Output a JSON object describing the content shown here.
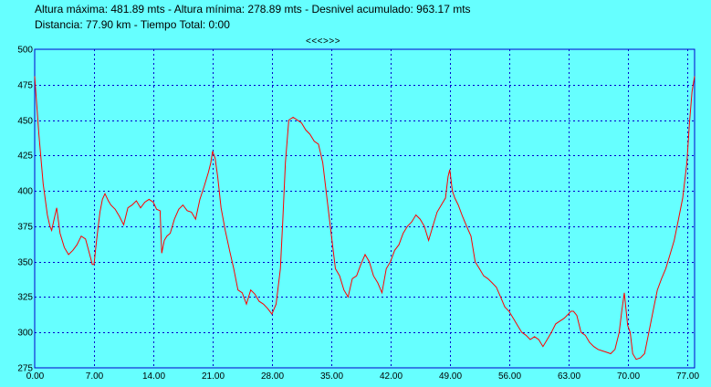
{
  "header": {
    "line1": "Altura máxima: 481.89 mts - Altura mínima: 278.89 mts - Desnivel acumulado: 963.17 mts",
    "line2": "Distancia: 77.90 km - Tiempo Total: 0:00",
    "nav": "<<<>>>"
  },
  "colors": {
    "background": "#66ffff",
    "line": "#ff0000",
    "grid": "#0000cc"
  },
  "chart_data": {
    "type": "line",
    "xlim": [
      0,
      77.9
    ],
    "ylim": [
      275,
      500
    ],
    "x_ticks": [
      "0.00",
      "7.00",
      "14.00",
      "21.00",
      "28.00",
      "35.00",
      "42.00",
      "49.00",
      "56.00",
      "63.00",
      "70.00",
      "77.00"
    ],
    "y_ticks": [
      "275",
      "300",
      "325",
      "350",
      "375",
      "400",
      "425",
      "450",
      "475",
      "500"
    ],
    "grid": true,
    "series": [
      {
        "x": [
          0,
          0.5,
          1.0,
          1.5,
          1.8,
          2.0,
          2.3,
          2.6,
          3.0,
          3.5,
          4.0,
          4.5,
          5.0,
          5.5,
          6.0,
          6.5,
          6.8,
          7.0,
          7.3,
          7.7,
          8.0,
          8.3,
          8.7,
          9.0,
          9.5,
          10.0,
          10.5,
          11.0,
          11.5,
          12.0,
          12.5,
          13.0,
          13.5,
          14.0,
          14.4,
          14.8,
          15.0,
          15.3,
          15.6,
          16.0,
          16.5,
          17.0,
          17.5,
          18.0,
          18.5,
          19.0,
          19.5,
          20.0,
          20.5,
          20.8,
          21.0,
          21.3,
          21.6,
          22.0,
          22.5,
          23.0,
          23.5,
          24.0,
          24.5,
          25.0,
          25.5,
          26.0,
          26.5,
          27.0,
          27.5,
          28.0,
          28.5,
          29.0,
          29.3,
          29.6,
          30.0,
          30.5,
          31.0,
          31.5,
          32.0,
          32.5,
          33.0,
          33.5,
          34.0,
          34.5,
          35.0,
          35.5,
          36.0,
          36.5,
          37.0,
          37.5,
          38.0,
          38.5,
          39.0,
          39.5,
          40.0,
          40.5,
          41.0,
          41.5,
          42.0,
          42.5,
          43.0,
          43.5,
          44.0,
          44.5,
          45.0,
          45.5,
          46.0,
          46.5,
          47.0,
          47.5,
          48.0,
          48.5,
          48.8,
          49.0,
          49.3,
          49.6,
          50.0,
          50.5,
          51.0,
          51.5,
          52.0,
          52.5,
          53.0,
          53.5,
          54.0,
          54.5,
          55.0,
          55.5,
          56.0,
          56.5,
          57.0,
          57.5,
          58.0,
          58.5,
          59.0,
          59.5,
          60.0,
          60.5,
          61.0,
          61.5,
          62.0,
          62.5,
          63.0,
          63.3,
          63.6,
          64.0,
          64.5,
          65.0,
          65.5,
          66.0,
          66.5,
          67.0,
          67.5,
          68.0,
          68.5,
          69.0,
          69.3,
          69.6,
          70.0,
          70.3,
          70.6,
          71.0,
          71.5,
          72.0,
          72.5,
          73.0,
          73.5,
          74.0,
          74.5,
          75.0,
          75.5,
          76.0,
          76.5,
          77.0,
          77.3,
          77.6,
          77.9
        ],
        "y": [
          481,
          440,
          405,
          383,
          375,
          372,
          380,
          388,
          370,
          360,
          355,
          358,
          362,
          368,
          366,
          355,
          348,
          348,
          365,
          385,
          394,
          398,
          393,
          390,
          387,
          382,
          376,
          388,
          390,
          393,
          388,
          392,
          394,
          392,
          387,
          386,
          356,
          365,
          368,
          370,
          380,
          387,
          390,
          386,
          385,
          380,
          394,
          403,
          413,
          420,
          428,
          423,
          410,
          388,
          372,
          358,
          345,
          330,
          328,
          320,
          330,
          327,
          322,
          320,
          317,
          313,
          320,
          345,
          380,
          420,
          450,
          452,
          450,
          448,
          443,
          440,
          435,
          433,
          420,
          395,
          370,
          345,
          340,
          330,
          325,
          338,
          340,
          348,
          355,
          350,
          340,
          335,
          328,
          345,
          350,
          358,
          362,
          370,
          375,
          378,
          383,
          380,
          375,
          365,
          375,
          385,
          390,
          395,
          410,
          415,
          400,
          395,
          390,
          382,
          375,
          368,
          350,
          345,
          340,
          338,
          335,
          332,
          325,
          318,
          315,
          310,
          305,
          300,
          298,
          295,
          297,
          295,
          290,
          295,
          300,
          306,
          308,
          310,
          313,
          315,
          315,
          312,
          300,
          298,
          293,
          290,
          288,
          287,
          286,
          285,
          288,
          300,
          315,
          328,
          305,
          300,
          285,
          281,
          282,
          285,
          300,
          315,
          330,
          338,
          345,
          355,
          365,
          380,
          395,
          420,
          448,
          470,
          481
        ]
      }
    ]
  }
}
